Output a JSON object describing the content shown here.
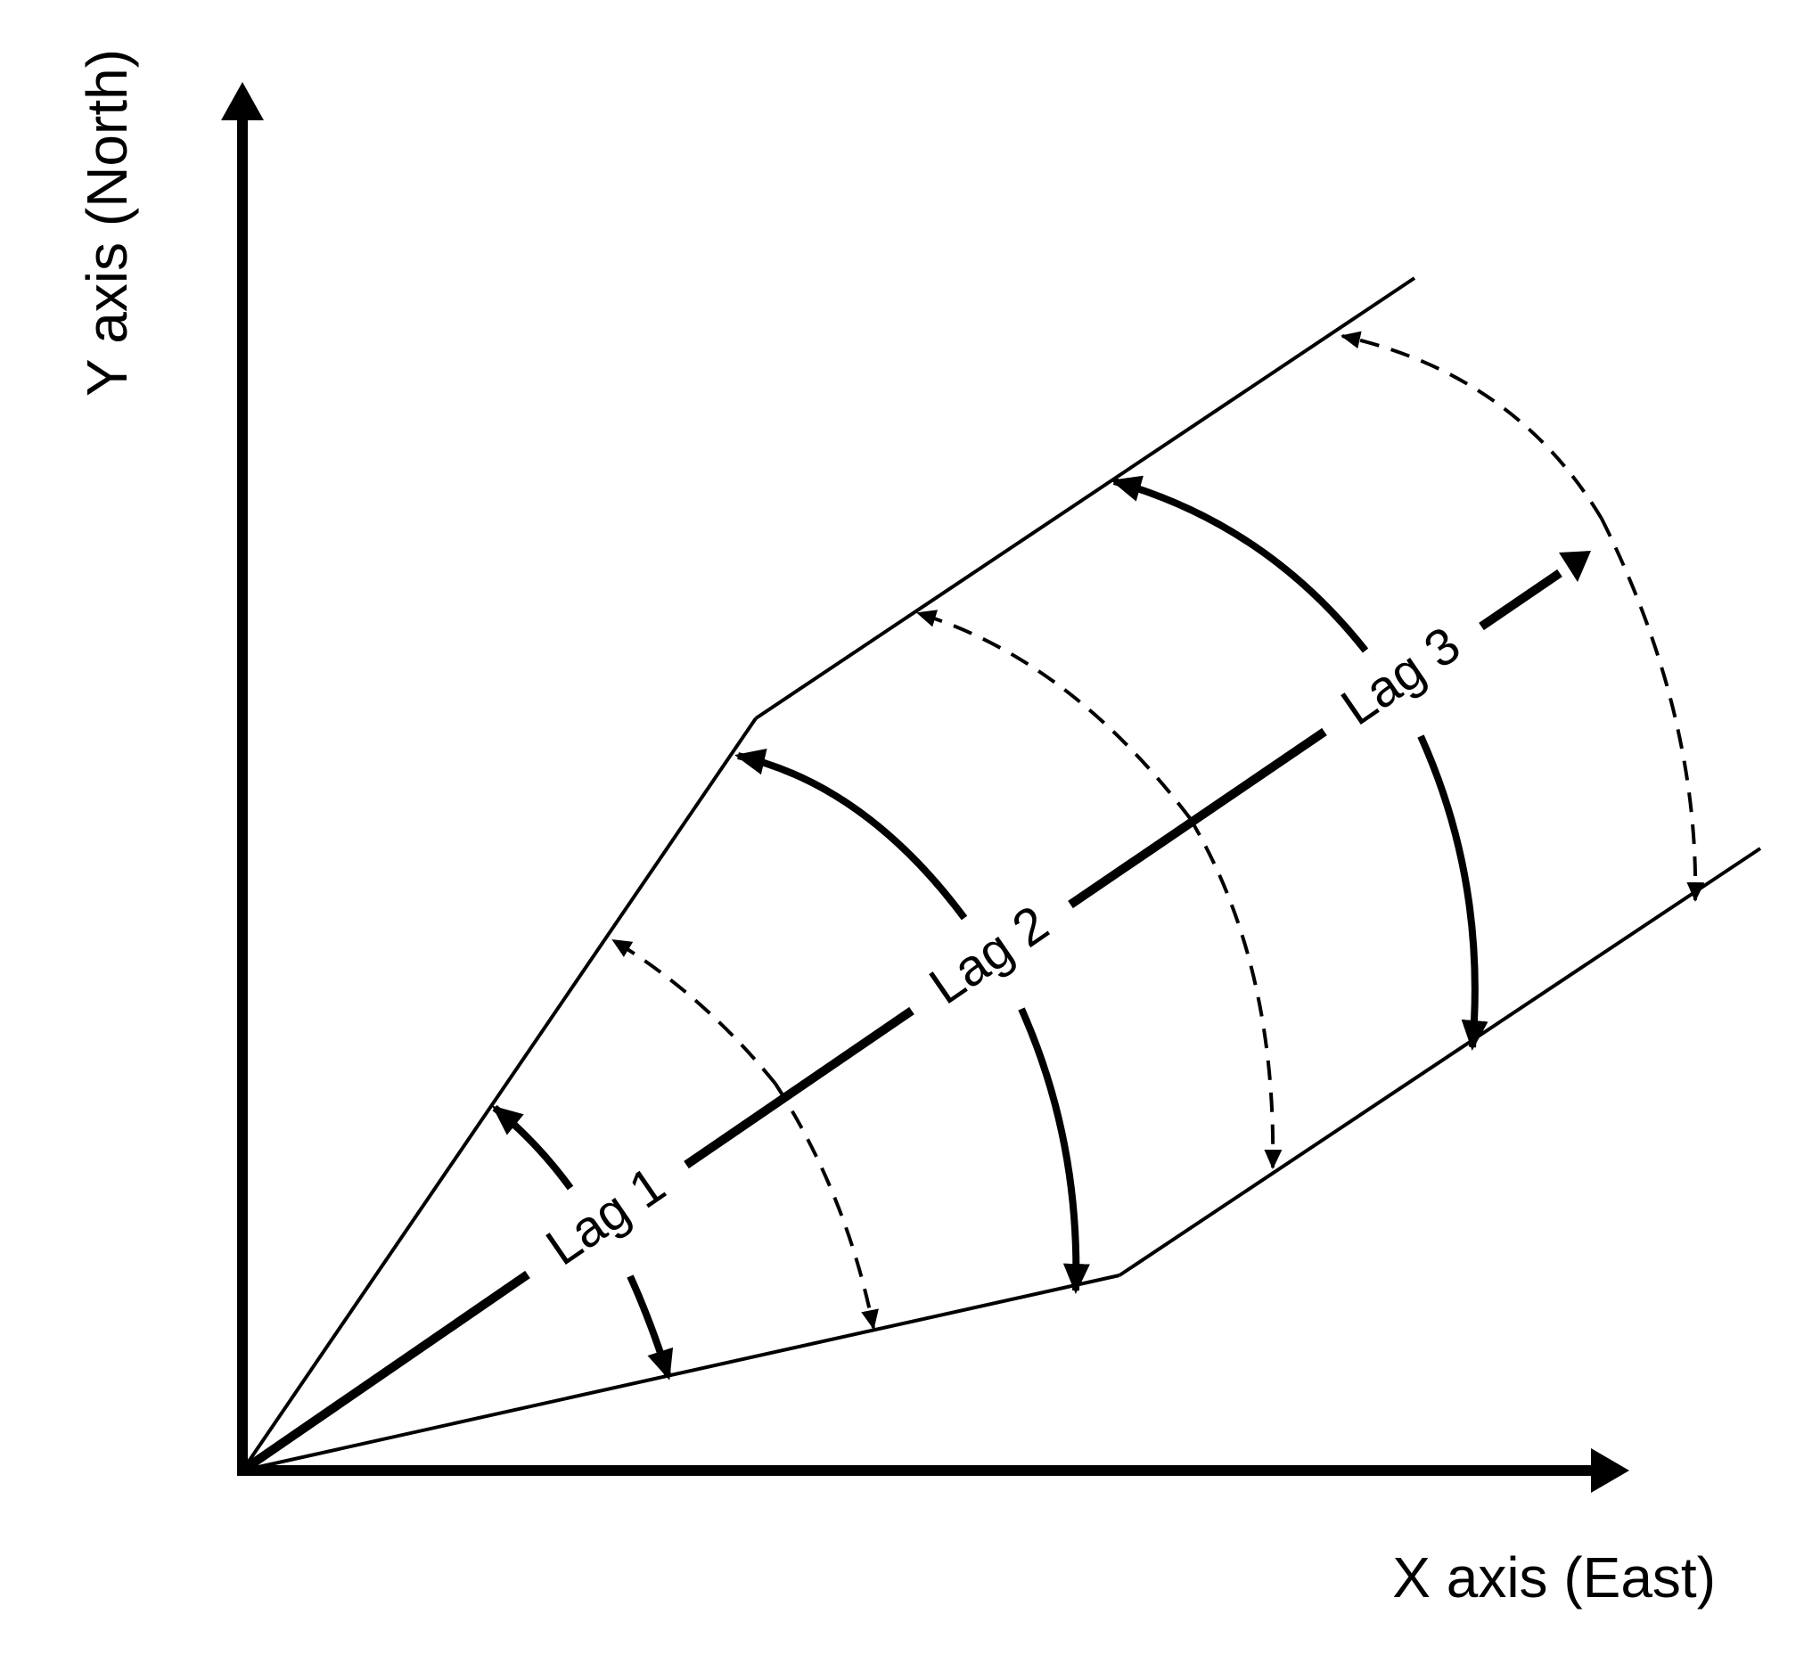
{
  "axes": {
    "x_label": "X axis (East)",
    "y_label": "Y axis (North)"
  },
  "lags": [
    {
      "label": "Lag 1"
    },
    {
      "label": "Lag 2"
    },
    {
      "label": "Lag 3"
    }
  ],
  "colors": {
    "stroke": "#000000",
    "background": "#ffffff"
  }
}
